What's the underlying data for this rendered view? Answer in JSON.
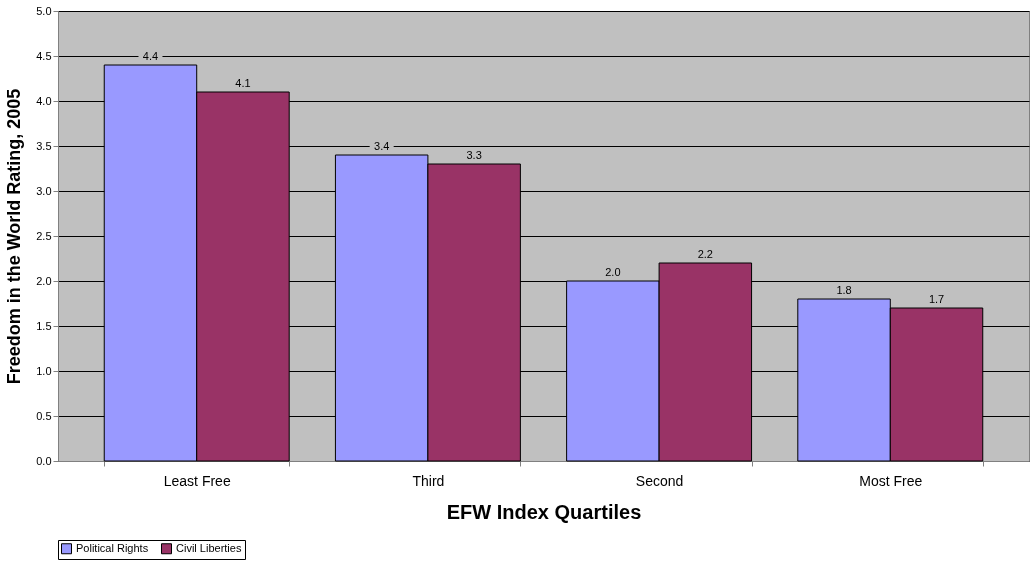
{
  "chart_data": {
    "type": "bar",
    "xlabel": "EFW Index Quartiles",
    "ylabel": "Freedom in the World Rating, 2005",
    "categories": [
      "Least Free",
      "Third",
      "Second",
      "Most Free"
    ],
    "series": [
      {
        "name": "Political Rights",
        "color": "#9999ff",
        "values": [
          4.4,
          3.4,
          2.0,
          1.8
        ],
        "value_labels": [
          "4.4",
          "3.4",
          "2.0",
          "1.8"
        ]
      },
      {
        "name": "Civil Liberties",
        "color": "#993366",
        "values": [
          4.1,
          3.3,
          2.2,
          1.7
        ],
        "value_labels": [
          "4.1",
          "3.3",
          "2.2",
          "1.7"
        ]
      }
    ],
    "ylim": [
      0,
      5
    ],
    "yticks": [
      {
        "value": 0,
        "label": "0.0"
      },
      {
        "value": 0.5,
        "label": "0.5"
      },
      {
        "value": 1,
        "label": "1.0"
      },
      {
        "value": 1.5,
        "label": "1.5"
      },
      {
        "value": 2,
        "label": "2.0"
      },
      {
        "value": 2.5,
        "label": "2.5"
      },
      {
        "value": 3,
        "label": "3.0"
      },
      {
        "value": 3.5,
        "label": "3.5"
      },
      {
        "value": 4,
        "label": "4.0"
      },
      {
        "value": 4.5,
        "label": "4.5"
      },
      {
        "value": 5,
        "label": "5.0"
      }
    ],
    "grid": "y",
    "legend": "bottom"
  }
}
